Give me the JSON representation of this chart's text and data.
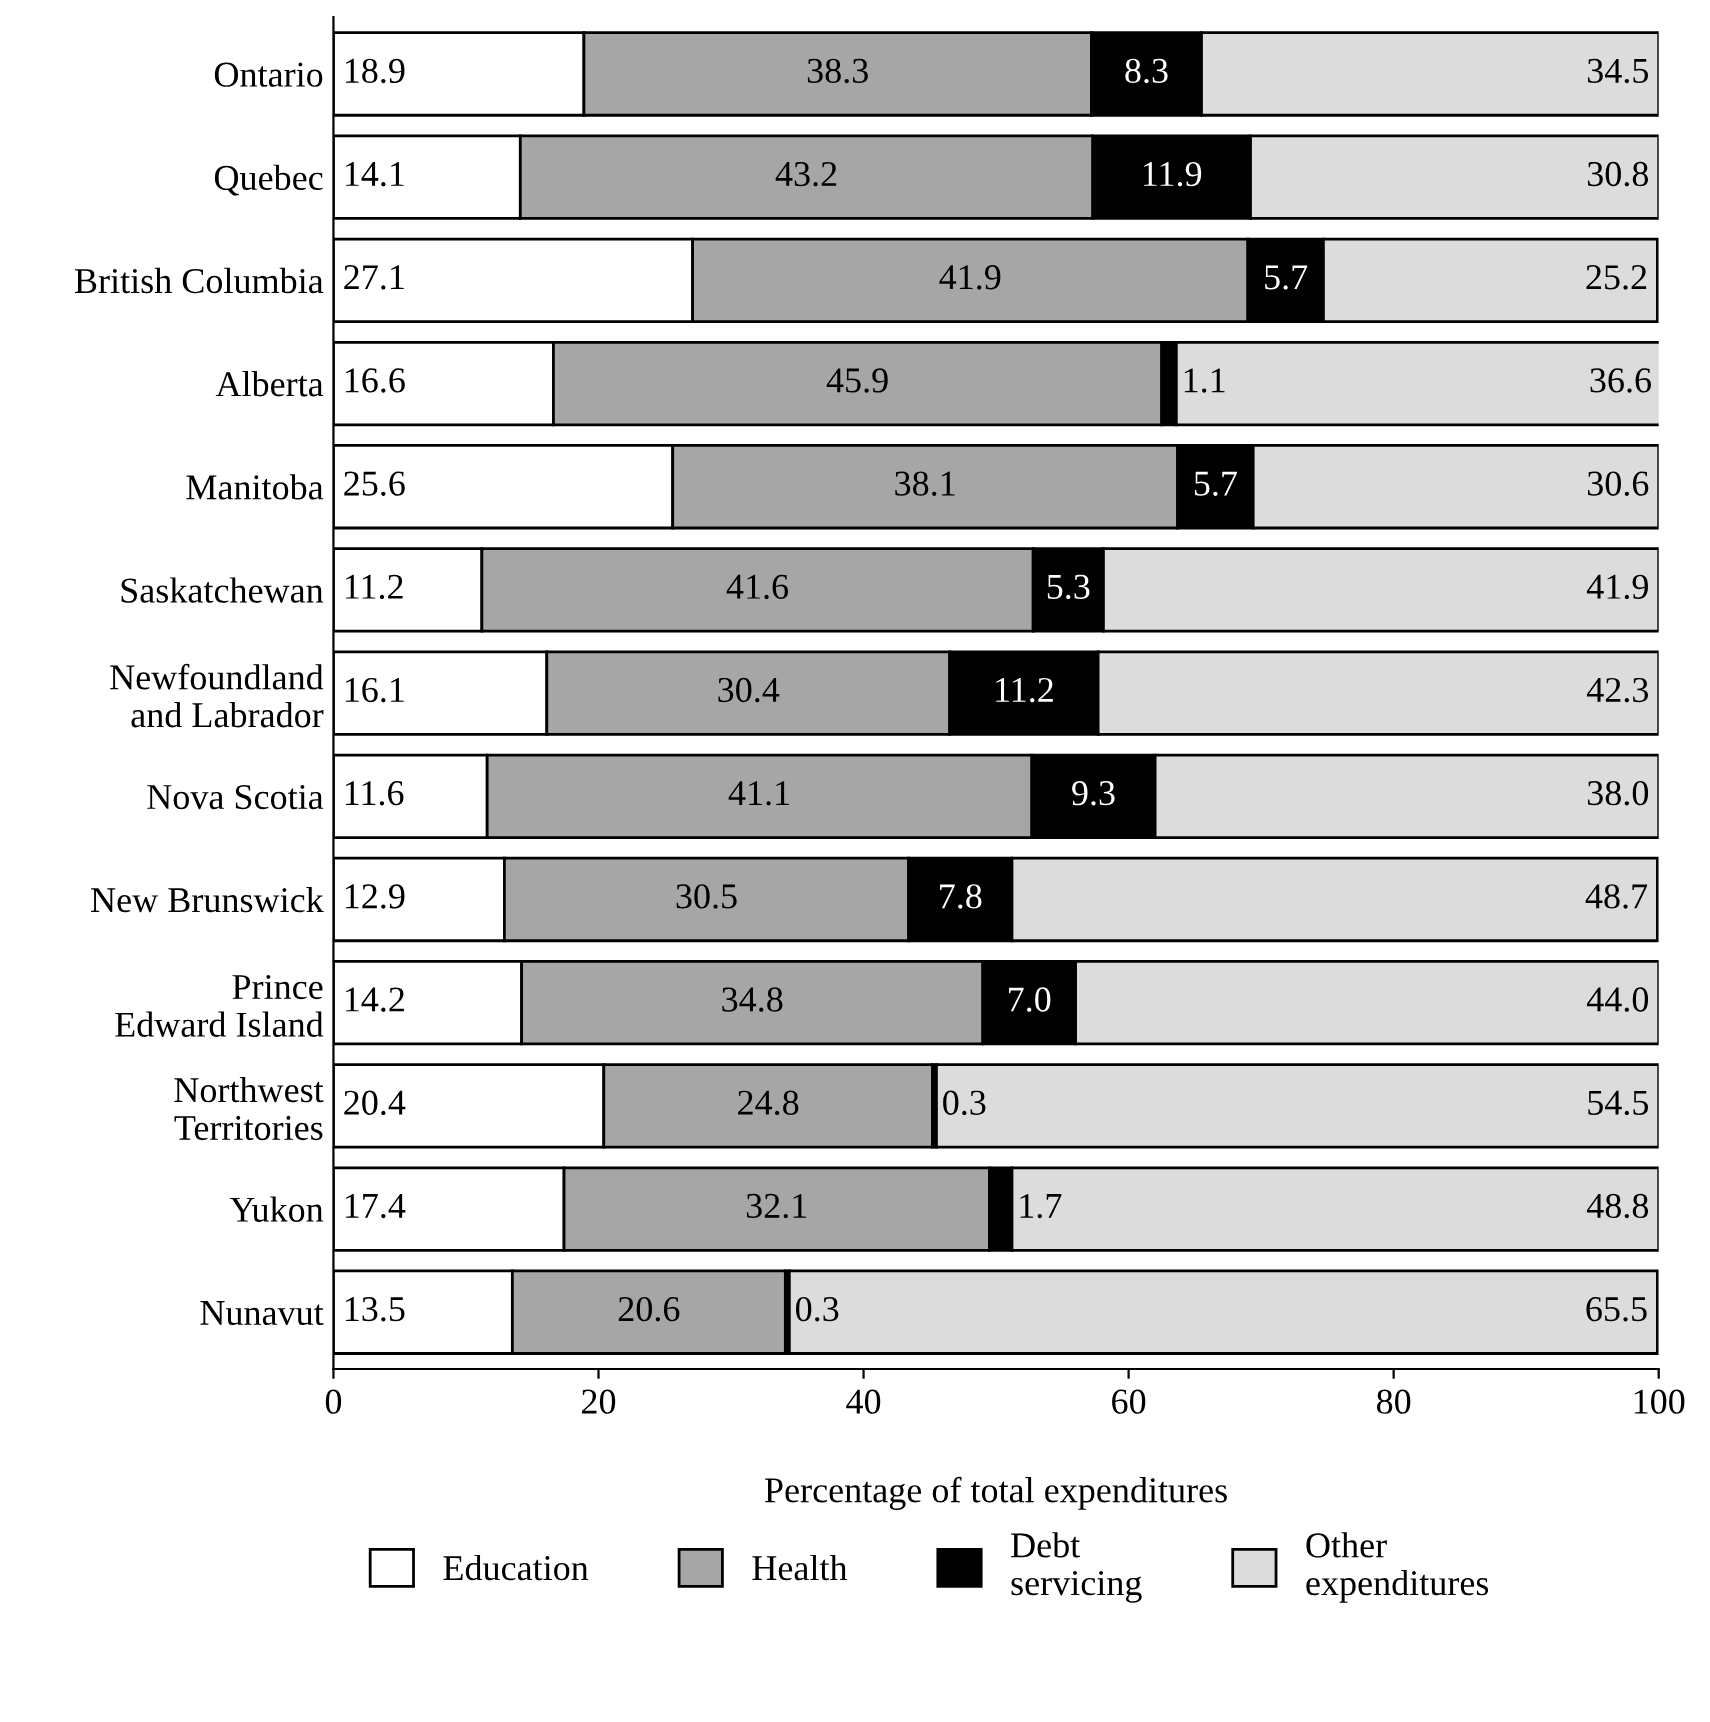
{
  "chart_data": {
    "type": "bar",
    "orientation": "horizontal",
    "stacked": true,
    "legend": "bottom",
    "grid": false,
    "xlabel": "Percentage of total expenditures",
    "xlim": [
      0,
      100
    ],
    "xticks": [
      0,
      20,
      40,
      60,
      80,
      100
    ],
    "categories": [
      "Ontario",
      "Quebec",
      "British Columbia",
      "Alberta",
      "Manitoba",
      "Saskatchewan",
      "Newfoundland\nand Labrador",
      "Nova Scotia",
      "New Brunswick",
      "Prince\nEdward Island",
      "Northwest\nTerritories",
      "Yukon",
      "Nunavut"
    ],
    "series": [
      {
        "name": "Education",
        "color": "#ffffff",
        "values": [
          18.9,
          14.1,
          27.1,
          16.6,
          25.6,
          11.2,
          16.1,
          11.6,
          12.9,
          14.2,
          20.4,
          17.4,
          13.5
        ],
        "value_labels": [
          "18.9",
          "14.1",
          "27.1",
          "16.6",
          "25.6",
          "11.2",
          "16.1",
          "11.6",
          "12.9",
          "14.2",
          "20.4",
          "17.4",
          "13.5"
        ]
      },
      {
        "name": "Health",
        "color": "#a6a6a6",
        "values": [
          38.3,
          43.2,
          41.9,
          45.9,
          38.1,
          41.6,
          30.4,
          41.1,
          30.5,
          34.8,
          24.8,
          32.1,
          20.6
        ],
        "value_labels": [
          "38.3",
          "43.2",
          "41.9",
          "45.9",
          "38.1",
          "41.6",
          "30.4",
          "41.1",
          "30.5",
          "34.8",
          "24.8",
          "32.1",
          "20.6"
        ]
      },
      {
        "name": "Debt\nservicing",
        "color": "#000000",
        "values": [
          8.3,
          11.9,
          5.7,
          1.1,
          5.7,
          5.3,
          11.2,
          9.3,
          7.8,
          7.0,
          0.3,
          1.7,
          0.3
        ],
        "value_labels": [
          "8.3",
          "11.9",
          "5.7",
          "1.1",
          "5.7",
          "5.3",
          "11.2",
          "9.3",
          "7.8",
          "7.0",
          "0.3",
          "1.7",
          "0.3"
        ]
      },
      {
        "name": "Other\nexpenditures",
        "color": "#dcdcdc",
        "values": [
          34.5,
          30.8,
          25.2,
          36.6,
          30.6,
          41.9,
          42.3,
          38.0,
          48.7,
          44.0,
          54.5,
          48.8,
          65.5
        ],
        "value_labels": [
          "34.5",
          "30.8",
          "25.2",
          "36.6",
          "30.6",
          "41.9",
          "42.3",
          "38.0",
          "48.7",
          "44.0",
          "54.5",
          "48.8",
          "65.5"
        ]
      }
    ]
  }
}
